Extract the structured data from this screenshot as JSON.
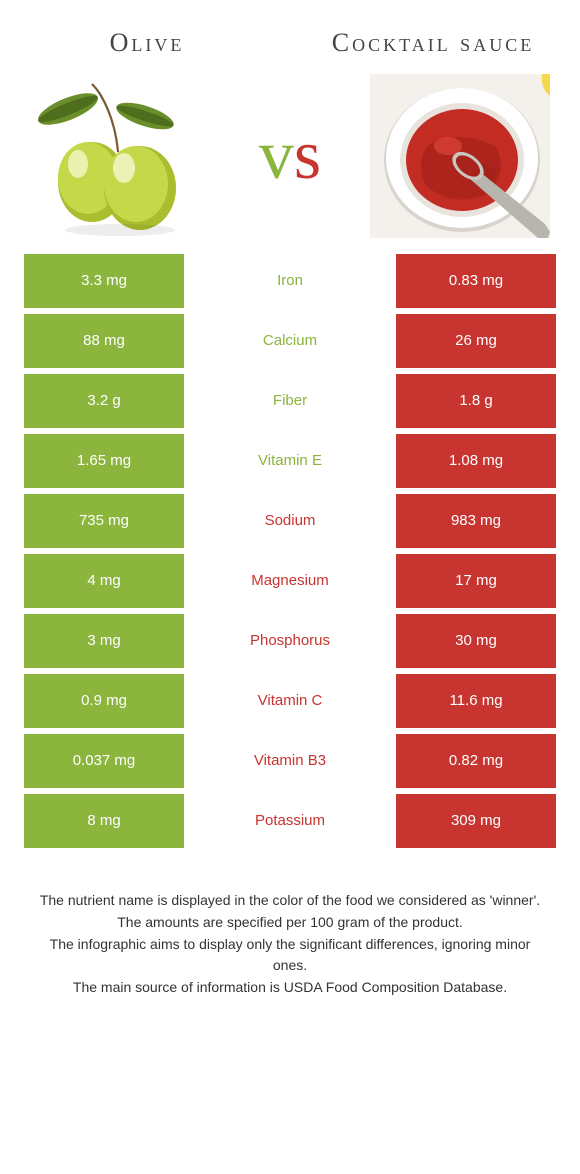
{
  "header": {
    "food_a_title": "Olive",
    "food_b_title": "Cocktail sauce",
    "vs_v": "v",
    "vs_s": "s"
  },
  "colors": {
    "food_a": "#8bb53d",
    "food_b": "#c83430",
    "vs_v": "#8bb53d",
    "vs_s": "#c83430",
    "row_bg_alt": "#ffffff",
    "page_bg": "#ffffff"
  },
  "illustrations": {
    "olive": {
      "body_color": "#c5d84a",
      "body_shade": "#a9bd2f",
      "highlight": "#f2f7c8",
      "leaf_color": "#6a8f2a",
      "leaf_dark": "#4e6e1d",
      "stem_color": "#7a5a36"
    },
    "sauce": {
      "plate_bg": "#f4f0ec",
      "bowl_outer": "#ffffff",
      "bowl_inner": "#e8e3dd",
      "sauce_color": "#c22c22",
      "sauce_dark": "#9d1f18",
      "spoon": "#b8b4ae",
      "lemon": "#f5d94a"
    }
  },
  "rows": [
    {
      "a": "3.3 mg",
      "label": "Iron",
      "b": "0.83 mg",
      "winner": "a"
    },
    {
      "a": "88 mg",
      "label": "Calcium",
      "b": "26 mg",
      "winner": "a"
    },
    {
      "a": "3.2 g",
      "label": "Fiber",
      "b": "1.8 g",
      "winner": "a"
    },
    {
      "a": "1.65 mg",
      "label": "Vitamin E",
      "b": "1.08 mg",
      "winner": "a"
    },
    {
      "a": "735 mg",
      "label": "Sodium",
      "b": "983 mg",
      "winner": "b"
    },
    {
      "a": "4 mg",
      "label": "Magnesium",
      "b": "17 mg",
      "winner": "b"
    },
    {
      "a": "3 mg",
      "label": "Phosphorus",
      "b": "30 mg",
      "winner": "b"
    },
    {
      "a": "0.9 mg",
      "label": "Vitamin C",
      "b": "11.6 mg",
      "winner": "b"
    },
    {
      "a": "0.037 mg",
      "label": "Vitamin B3",
      "b": "0.82 mg",
      "winner": "b"
    },
    {
      "a": "8 mg",
      "label": "Potassium",
      "b": "309 mg",
      "winner": "b"
    }
  ],
  "notes": [
    "The nutrient name is displayed in the color of the food we considered as 'winner'.",
    "The amounts are specified per 100 gram of the product.",
    "The infographic aims to display only the significant differences, ignoring minor ones.",
    "The main source of information is USDA Food Composition Database."
  ]
}
